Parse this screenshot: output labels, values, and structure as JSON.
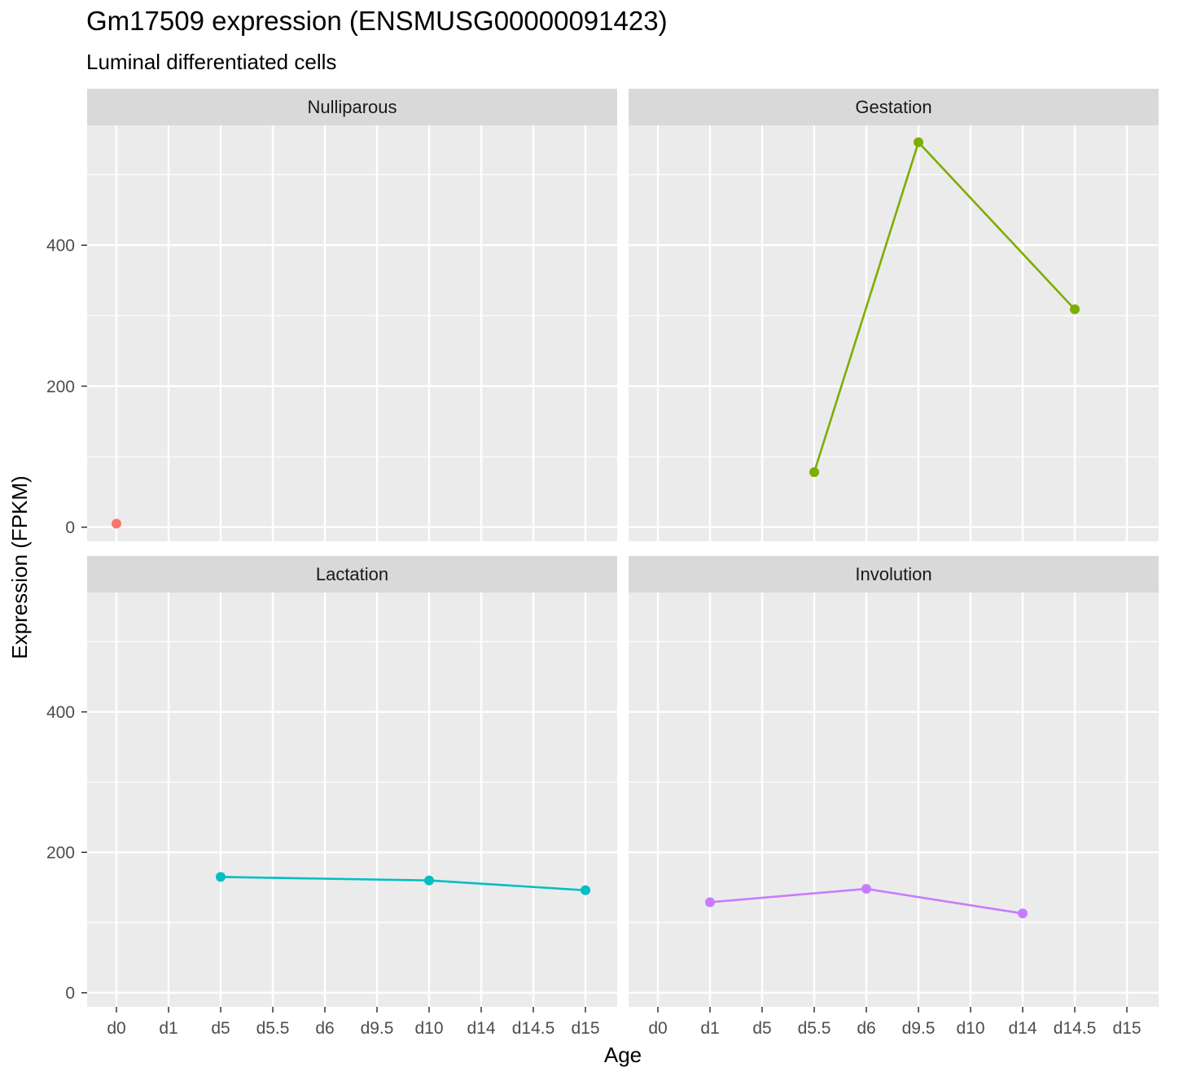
{
  "chart_data": {
    "type": "line",
    "title": "Gm17509 expression (ENSMUSG00000091423)",
    "subtitle": "Luminal differentiated cells",
    "xlabel": "Age",
    "ylabel": "Expression (FPKM)",
    "categories": [
      "d0",
      "d1",
      "d5",
      "d5.5",
      "d6",
      "d9.5",
      "d10",
      "d14",
      "d14.5",
      "d15"
    ],
    "ylim": [
      -20,
      570
    ],
    "y_ticks": [
      0,
      200,
      400
    ],
    "grid": true,
    "facets": [
      {
        "name": "Nulliparous",
        "color": "#F8766D",
        "points": [
          {
            "x": "d0",
            "y": 5
          }
        ]
      },
      {
        "name": "Gestation",
        "color": "#7CAE00",
        "points": [
          {
            "x": "d5.5",
            "y": 78
          },
          {
            "x": "d9.5",
            "y": 546
          },
          {
            "x": "d14.5",
            "y": 309
          }
        ]
      },
      {
        "name": "Lactation",
        "color": "#00BFC4",
        "points": [
          {
            "x": "d5",
            "y": 165
          },
          {
            "x": "d10",
            "y": 160
          },
          {
            "x": "d15",
            "y": 146
          }
        ]
      },
      {
        "name": "Involution",
        "color": "#C77CFF",
        "points": [
          {
            "x": "d1",
            "y": 129
          },
          {
            "x": "d6",
            "y": 148
          },
          {
            "x": "d14",
            "y": 113
          }
        ]
      }
    ]
  },
  "colors": {
    "panel_background": "#EBEBEB",
    "strip_background": "#D9D9D9",
    "grid_major": "#FFFFFF",
    "tick_text": "#4D4D4D",
    "tick_mark": "#333333"
  }
}
